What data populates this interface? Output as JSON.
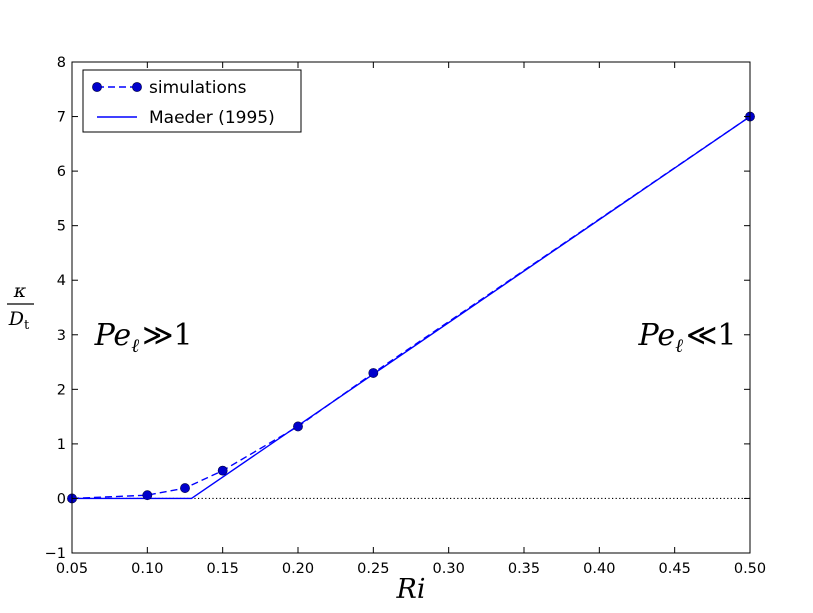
{
  "chart_data": {
    "type": "line",
    "xlabel": "Ri",
    "ylabel": {
      "numerator": "κ",
      "denominator_main": "D",
      "denominator_sub": "t"
    },
    "xlim": [
      0.05,
      0.5
    ],
    "ylim": [
      -1,
      8
    ],
    "x_ticks": [
      0.05,
      0.1,
      0.15,
      0.2,
      0.25,
      0.3,
      0.35,
      0.4,
      0.45,
      0.5
    ],
    "x_tick_labels": [
      "0.05",
      "0.10",
      "0.15",
      "0.20",
      "0.25",
      "0.30",
      "0.35",
      "0.40",
      "0.45",
      "0.50"
    ],
    "y_ticks": [
      -1,
      0,
      1,
      2,
      3,
      4,
      5,
      6,
      7,
      8
    ],
    "y_tick_labels": [
      "−1",
      "0",
      "1",
      "2",
      "3",
      "4",
      "5",
      "6",
      "7",
      "8"
    ],
    "grid": false,
    "legend_position": "top-left",
    "series": [
      {
        "name": "simulations",
        "style": "dashed-with-markers",
        "color": "#0000ff",
        "marker_color": "#0000cc",
        "x": [
          0.05,
          0.1,
          0.125,
          0.15,
          0.2,
          0.25,
          0.5
        ],
        "y": [
          0.0,
          0.06,
          0.19,
          0.51,
          1.32,
          2.3,
          7.0
        ]
      },
      {
        "name": "Maeder (1995)",
        "style": "solid",
        "color": "#0000ff",
        "x": [
          0.05,
          0.1293,
          0.5
        ],
        "y": [
          0.0,
          0.0,
          7.0
        ]
      }
    ],
    "reference_line": {
      "y": 0,
      "style": "dotted",
      "color": "#000000"
    },
    "annotations": [
      {
        "text_main": "Pe",
        "text_sub": "ℓ",
        "text_rel": "≫1",
        "x": 0.065,
        "y": 3.0
      },
      {
        "text_main": "Pe",
        "text_sub": "ℓ",
        "text_rel": "≪1",
        "x": 0.426,
        "y": 3.0
      }
    ]
  }
}
